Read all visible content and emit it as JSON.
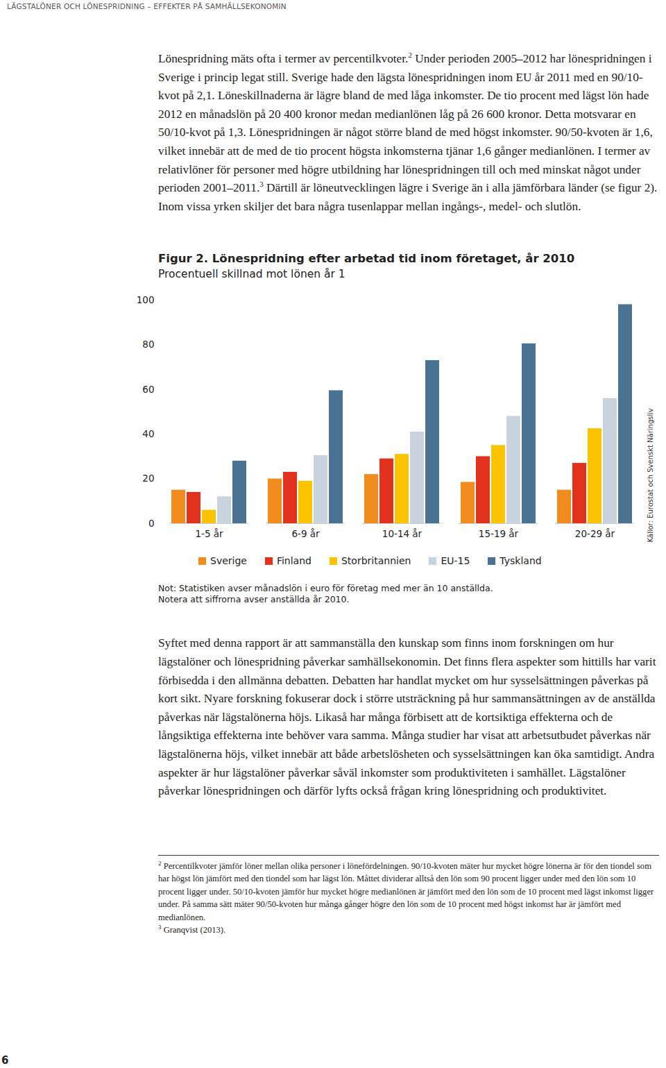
{
  "header": "LÄGSTALÖNER OCH LÖNESPRIDNING – EFFEKTER PÅ SAMHÄLLSEKONOMIN",
  "paragraphs": [
    [
      {
        "text": "Lönespridning mäts ofta i termer av percentilkvoter."
      },
      {
        "sup": "2"
      },
      {
        "text": " Under perioden 2005–2012 har lönespridningen i Sverige i princip legat still. Sverige hade den lägsta lönespridningen inom EU år 2011 med en 90/10-kvot på 2,1. Löneskillnaderna är lägre bland de med låga inkomster. De tio procent med lägst lön hade 2012 en månadslön på 20 400 kronor medan medianlönen låg på 26 600 kronor. Detta motsvarar en 50/10-kvot på 1,3. Lönespridningen är något större bland de med högst inkomster. 90/50-kvoten är 1,6, vilket innebär att de med de tio procent högsta inkomsterna tjänar 1,6 gånger medianlönen. I termer av relativlöner för personer med högre utbildning har lönespridningen till och med minskat något under perioden 2001–2011."
      },
      {
        "sup": "3"
      },
      {
        "text": " Därtill är löneutvecklingen lägre i Sverige än i alla jämförbara länder (se figur 2). Inom vissa yrken skiljer det bara några tusenlappar mellan ingångs-, medel- och slutlön."
      }
    ],
    [
      {
        "text": "Syftet med denna rapport är att sammanställa den kunskap som finns inom forskningen om hur lägstalöner och lönespridning påverkar samhällsekonomin. Det finns flera aspekter som hittills har varit förbisedda i den allmänna debatten. Debatten har handlat mycket om hur sysselsättningen påverkas på kort sikt. Nyare forskning fokuserar dock i större utsträckning på hur sammansättningen av de anställda påverkas när lägstalönerna höjs. Likaså har många förbisett att de kortsiktiga effekterna och de långsiktiga effekterna inte behöver vara samma. Många studier har visat att arbetsutbudet påverkas när lägstalönerna höjs, vilket innebär att både arbetslösheten och sysselsättningen kan öka samtidigt. Andra aspekter är hur lägstalöner påverkar såväl inkomster som produktiviteten i samhället. Lägstalöner påverkar lönespridningen och därför lyfts också frågan kring lönespridning och produktivitet."
      }
    ]
  ],
  "chart_data": {
    "type": "bar",
    "title": "Figur 2. Lönespridning efter arbetad tid inom företaget, år 2010",
    "subtitle": "Procentuell skillnad mot lönen år 1",
    "categories": [
      "1-5 år",
      "6-9 år",
      "10-14 år",
      "15-19 år",
      "20-29 år"
    ],
    "series": [
      {
        "name": "Sverige",
        "color": "#f28c1e",
        "values": [
          15,
          20,
          22,
          18.5,
          15
        ]
      },
      {
        "name": "Finland",
        "color": "#e2321d",
        "values": [
          14,
          23,
          29,
          30,
          27
        ]
      },
      {
        "name": "Storbritannien",
        "color": "#fcc400",
        "values": [
          6,
          19,
          31,
          35,
          42.5
        ]
      },
      {
        "name": "EU-15",
        "color": "#c9d3dd",
        "values": [
          12,
          30.5,
          41,
          48,
          56
        ]
      },
      {
        "name": "Tyskland",
        "color": "#4a7393",
        "values": [
          28,
          59.5,
          73,
          80.5,
          98
        ]
      }
    ],
    "ylim": [
      0,
      100
    ],
    "yticks": [
      0,
      20,
      40,
      60,
      80,
      100
    ],
    "grid": false,
    "legend": "bottom",
    "source": "Källor: Eurostat och Svenskt Näringsliv",
    "notes": [
      "Not: Statistiken avser månadslön i euro för företag med mer än 10 anställda.",
      "Notera att siffrorna avser anställda år 2010."
    ]
  },
  "footnotes": [
    {
      "marker": "2",
      "text": "Percentilkvoter jämför löner mellan olika personer i lönefördelningen. 90/10-kvoten mäter hur mycket högre lönerna är för den tiondel som har högst lön jämfört med den tiondel som har lägst lön. Måttet dividerar alltså den lön som 90 procent ligger under med den lön som 10 procent ligger under. 50/10-kvoten jämför hur mycket högre medianlönen är jämfört med den lön som de 10 procent med lägst inkomst ligger under. På samma sätt mäter 90/50-kvoten hur många gånger högre den lön som de 10 procent med högst inkomst har är jämfört med medianlönen."
    },
    {
      "marker": "3",
      "text": "Granqvist (2013)."
    }
  ],
  "page_number": "6"
}
